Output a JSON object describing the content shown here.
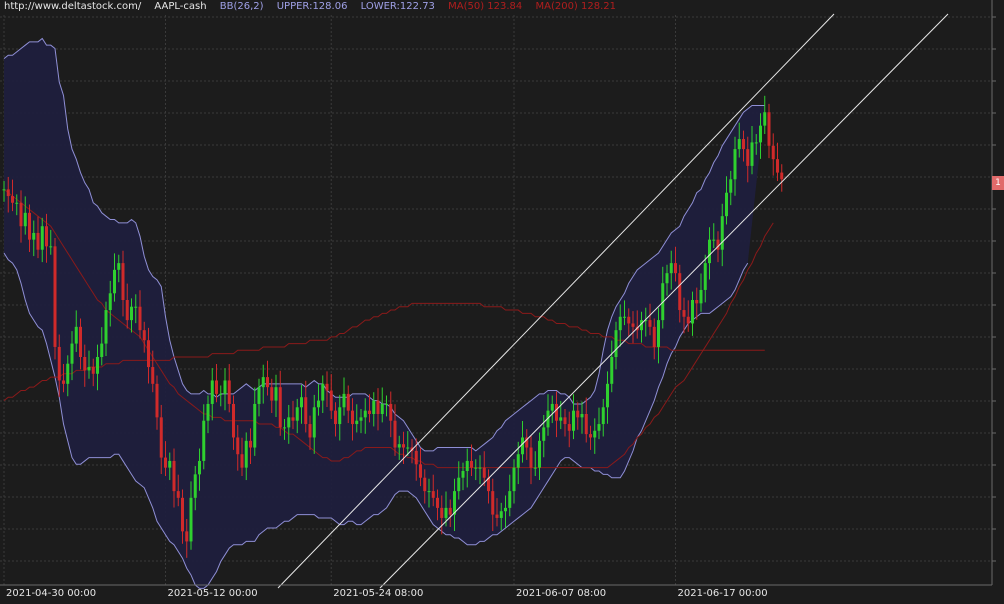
{
  "header": {
    "url": "http://www.deltastock.com/",
    "symbol": "AAPL-cash",
    "bb_label": "BB(26,2)",
    "upper_label": "UPPER:128.06",
    "lower_label": "LOWER:122.73",
    "ma50_label": "MA(50)  123.84",
    "ma200_label": "MA(200)  128.21"
  },
  "price_tag": "1",
  "colors": {
    "background": "#1c1c1c",
    "grid": "#3a3a3a",
    "bull": "#2fd02f",
    "bear": "#d02a2a",
    "band_fill": "#1f1f3d",
    "band_line": "#8f8fd6",
    "ma": "#8a1a1a",
    "channel": "#e8e8e8"
  },
  "chart_data": {
    "type": "candlestick",
    "symbol": "AAPL-cash",
    "x_tick_labels": [
      "2021-04-30 00:00",
      "2021-05-12 00:00",
      "2021-05-24 08:00",
      "2021-06-07 08:00",
      "2021-06-17 00:00"
    ],
    "x_tick_index": [
      0,
      38,
      77,
      120,
      158
    ],
    "ylim": [
      120.5,
      137.5
    ],
    "grid": true,
    "indicators": {
      "bollinger": {
        "period": 26,
        "stddev": 2,
        "upper": 128.06,
        "lower": 122.73
      },
      "ma50": 123.84,
      "ma200": 128.21
    },
    "close": [
      132.3,
      132.1,
      131.9,
      131.9,
      131.2,
      131.6,
      130.8,
      131.0,
      130.5,
      131.2,
      130.6,
      130.6,
      127.6,
      126.6,
      126.5,
      127.1,
      127.7,
      128.2,
      127.3,
      126.9,
      127.0,
      126.8,
      127.3,
      127.7,
      128.7,
      129.2,
      129.9,
      130.1,
      129.0,
      128.4,
      128.8,
      128.8,
      128.1,
      127.8,
      127.0,
      126.5,
      125.5,
      124.3,
      124.0,
      124.2,
      123.3,
      123.1,
      122.1,
      121.8,
      123.1,
      123.8,
      124.2,
      125.4,
      125.9,
      126.6,
      126.2,
      126.2,
      126.6,
      125.9,
      124.9,
      124.4,
      124.0,
      124.8,
      124.6,
      125.9,
      126.4,
      126.7,
      126.4,
      126.0,
      126.4,
      125.2,
      125.2,
      125.5,
      125.4,
      125.8,
      126.1,
      125.3,
      124.9,
      125.8,
      126.0,
      126.5,
      126.3,
      125.7,
      125.3,
      125.8,
      126.2,
      125.7,
      125.3,
      125.4,
      125.5,
      125.7,
      125.6,
      126.0,
      125.6,
      125.9,
      125.9,
      125.4,
      124.6,
      124.7,
      124.6,
      124.6,
      124.5,
      124.1,
      123.7,
      123.3,
      123.3,
      123.1,
      122.8,
      122.5,
      122.8,
      122.6,
      123.3,
      123.7,
      123.9,
      124.2,
      124.0,
      124.0,
      124.0,
      123.7,
      123.3,
      122.6,
      122.5,
      122.7,
      122.8,
      123.3,
      124.0,
      124.4,
      124.9,
      124.6,
      124.0,
      124.0,
      124.8,
      125.2,
      125.7,
      125.9,
      125.4,
      125.5,
      125.3,
      125.1,
      125.7,
      125.5,
      125.6,
      125.0,
      124.9,
      125.1,
      125.3,
      125.8,
      126.5,
      127.3,
      128.1,
      128.5,
      128.5,
      128.3,
      128.2,
      128.1,
      128.4,
      128.4,
      128.2,
      127.6,
      128.4,
      129.5,
      129.8,
      130.1,
      129.8,
      128.7,
      128.5,
      128.3,
      129.0,
      128.9,
      129.3,
      130.1,
      130.8,
      130.8,
      130.5,
      131.5,
      132.2,
      132.6,
      133.5,
      133.8,
      133.5,
      133.0,
      133.7,
      133.7,
      134.2,
      134.6,
      133.6,
      133.2,
      132.8,
      132.6
    ],
    "upper_band": [
      136.2,
      136.3,
      136.3,
      136.4,
      136.5,
      136.6,
      136.7,
      136.7,
      136.7,
      136.8,
      136.6,
      136.6,
      136.5,
      135.5,
      135.1,
      134.1,
      133.5,
      133.2,
      132.8,
      132.5,
      132.3,
      131.9,
      131.8,
      131.6,
      131.5,
      131.4,
      131.4,
      131.3,
      131.3,
      131.3,
      131.4,
      131.3,
      130.9,
      130.3,
      129.9,
      129.7,
      129.6,
      129.4,
      128.5,
      127.8,
      127.3,
      126.9,
      126.5,
      126.3,
      126.2,
      126.2,
      126.2,
      126.3,
      126.2,
      126.2,
      126.1,
      126.2,
      126.2,
      126.2,
      126.2,
      126.3,
      126.4,
      126.5,
      126.4,
      126.3,
      126.4,
      126.5,
      126.5,
      126.5,
      126.5,
      126.5,
      126.5,
      126.5,
      126.5,
      126.5,
      126.5,
      126.4,
      126.5,
      126.6,
      126.5,
      126.5,
      126.3,
      126.2,
      126.1,
      126.1,
      126.1,
      126.1,
      126.2,
      126.2,
      126.2,
      126.2,
      126.1,
      126.0,
      126.0,
      125.9,
      125.9,
      125.8,
      125.6,
      125.5,
      125.4,
      125.2,
      125.0,
      124.8,
      124.6,
      124.5,
      124.5,
      124.5,
      124.6,
      124.6,
      124.6,
      124.6,
      124.6,
      124.6,
      124.6,
      124.6,
      124.6,
      124.5,
      124.6,
      124.7,
      124.8,
      124.9,
      125.1,
      125.2,
      125.4,
      125.5,
      125.6,
      125.7,
      125.8,
      125.9,
      126.0,
      126.1,
      126.2,
      126.2,
      126.3,
      126.3,
      126.3,
      126.2,
      126.2,
      126.1,
      125.9,
      125.9,
      125.9,
      126.0,
      126.1,
      126.3,
      126.8,
      127.5,
      128.1,
      128.5,
      128.8,
      129.0,
      129.2,
      129.5,
      129.7,
      129.9,
      130.0,
      130.1,
      130.2,
      130.3,
      130.4,
      130.6,
      130.8,
      131.0,
      131.1,
      131.2,
      131.5,
      131.7,
      131.9,
      132.2,
      132.3,
      132.6,
      132.8,
      133.1,
      133.3,
      133.6,
      133.8,
      134.0,
      134.2,
      134.4,
      134.6,
      134.7,
      134.8,
      134.8,
      134.8,
      134.8
    ],
    "lower_band": [
      130.4,
      130.2,
      130.1,
      129.9,
      129.5,
      129.0,
      128.6,
      128.4,
      128.2,
      128.1,
      127.7,
      127.2,
      126.7,
      126.1,
      125.3,
      124.8,
      124.3,
      124.1,
      124.1,
      124.2,
      124.3,
      124.3,
      124.3,
      124.3,
      124.3,
      124.3,
      124.4,
      124.4,
      124.2,
      124.0,
      123.8,
      123.6,
      123.5,
      123.4,
      123.1,
      122.8,
      122.4,
      122.2,
      122.0,
      121.8,
      121.7,
      121.5,
      121.3,
      121.0,
      120.8,
      120.5,
      120.4,
      120.4,
      120.5,
      120.7,
      120.9,
      121.2,
      121.4,
      121.6,
      121.7,
      121.7,
      121.7,
      121.8,
      121.8,
      121.8,
      122.0,
      122.1,
      122.2,
      122.2,
      122.2,
      122.3,
      122.4,
      122.4,
      122.5,
      122.6,
      122.6,
      122.6,
      122.6,
      122.6,
      122.5,
      122.5,
      122.5,
      122.5,
      122.4,
      122.3,
      122.3,
      122.4,
      122.4,
      122.3,
      122.3,
      122.4,
      122.5,
      122.6,
      122.6,
      122.7,
      122.8,
      123.0,
      123.2,
      123.3,
      123.3,
      123.3,
      123.2,
      123.1,
      122.9,
      122.7,
      122.5,
      122.3,
      122.2,
      122.1,
      122.0,
      122.0,
      121.9,
      121.9,
      121.8,
      121.7,
      121.7,
      121.7,
      121.8,
      121.8,
      121.9,
      122.0,
      122.0,
      122.1,
      122.2,
      122.3,
      122.4,
      122.5,
      122.6,
      122.7,
      122.8,
      123.0,
      123.2,
      123.4,
      123.6,
      123.8,
      124.0,
      124.2,
      124.3,
      124.3,
      124.2,
      124.1,
      124.0,
      124.0,
      124.0,
      123.9,
      123.9,
      123.8,
      123.8,
      123.7,
      123.7,
      123.7,
      123.9,
      124.2,
      124.5,
      124.9,
      125.1,
      125.4,
      125.7,
      126.0,
      126.4,
      126.7,
      127.1,
      127.4,
      127.6,
      127.9,
      128.1,
      128.3,
      128.4,
      128.5,
      128.6,
      128.6,
      128.6,
      128.7,
      128.8,
      128.9,
      129.0,
      129.1,
      129.3,
      129.6,
      129.9,
      130.1
    ],
    "ma50": [
      132.3,
      132.2,
      132.1,
      132.0,
      131.9,
      131.8,
      131.7,
      131.6,
      131.5,
      131.4,
      131.3,
      131.2,
      131.0,
      130.8,
      130.6,
      130.4,
      130.2,
      130.0,
      129.8,
      129.6,
      129.4,
      129.2,
      129.0,
      128.9,
      128.7,
      128.6,
      128.5,
      128.4,
      128.3,
      128.2,
      128.1,
      128.0,
      127.9,
      127.7,
      127.5,
      127.3,
      127.1,
      126.9,
      126.7,
      126.5,
      126.4,
      126.2,
      126.1,
      126.0,
      125.9,
      125.8,
      125.7,
      125.6,
      125.6,
      125.5,
      125.5,
      125.5,
      125.4,
      125.4,
      125.4,
      125.4,
      125.4,
      125.4,
      125.4,
      125.4,
      125.3,
      125.3,
      125.3,
      125.3,
      125.2,
      125.2,
      125.1,
      125.0,
      125.0,
      124.9,
      124.8,
      124.7,
      124.6,
      124.5,
      124.4,
      124.3,
      124.3,
      124.2,
      124.2,
      124.2,
      124.3,
      124.3,
      124.4,
      124.5,
      124.5,
      124.6,
      124.6,
      124.6,
      124.6,
      124.6,
      124.6,
      124.6,
      124.5,
      124.4,
      124.4,
      124.3,
      124.3,
      124.2,
      124.2,
      124.1,
      124.1,
      124.1,
      124.0,
      124.0,
      124.0,
      124.0,
      124.0,
      124.0,
      124.0,
      124.0,
      124.0,
      124.0,
      124.0,
      124.0,
      124.0,
      124.0,
      124.0,
      124.0,
      124.0,
      124.0,
      124.0,
      124.0,
      124.0,
      124.0,
      124.0,
      124.0,
      124.0,
      124.0,
      124.0,
      124.0,
      124.0,
      124.0,
      124.0,
      124.0,
      124.0,
      124.0,
      124.0,
      124.0,
      124.0,
      124.0,
      124.0,
      124.0,
      124.0,
      124.1,
      124.2,
      124.3,
      124.4,
      124.6,
      124.7,
      124.9,
      125.0,
      125.2,
      125.3,
      125.5,
      125.6,
      125.8,
      126.0,
      126.2,
      126.4,
      126.5,
      126.6,
      126.8,
      127.0,
      127.2,
      127.4,
      127.6,
      127.8,
      128.0,
      128.2,
      128.4,
      128.6,
      128.9,
      129.1,
      129.4,
      129.6,
      129.9,
      130.1,
      130.4,
      130.6,
      130.9,
      131.1,
      131.3
    ],
    "ma200": [
      126.0,
      126.1,
      126.1,
      126.2,
      126.3,
      126.3,
      126.4,
      126.4,
      126.5,
      126.6,
      126.6,
      126.7,
      126.7,
      126.7,
      126.8,
      126.8,
      126.8,
      126.9,
      126.9,
      126.9,
      127.0,
      127.0,
      127.0,
      127.0,
      127.1,
      127.1,
      127.1,
      127.1,
      127.2,
      127.2,
      127.2,
      127.2,
      127.2,
      127.2,
      127.2,
      127.2,
      127.2,
      127.2,
      127.2,
      127.2,
      127.3,
      127.3,
      127.3,
      127.3,
      127.3,
      127.3,
      127.3,
      127.3,
      127.3,
      127.4,
      127.4,
      127.4,
      127.4,
      127.4,
      127.4,
      127.5,
      127.5,
      127.5,
      127.5,
      127.5,
      127.5,
      127.6,
      127.6,
      127.6,
      127.6,
      127.6,
      127.6,
      127.7,
      127.7,
      127.7,
      127.7,
      127.7,
      127.8,
      127.8,
      127.8,
      127.8,
      127.8,
      127.9,
      127.9,
      128.0,
      128.0,
      128.1,
      128.2,
      128.2,
      128.3,
      128.4,
      128.4,
      128.5,
      128.5,
      128.6,
      128.6,
      128.7,
      128.7,
      128.8,
      128.8,
      128.8,
      128.9,
      128.9,
      128.9,
      128.9,
      128.9,
      128.9,
      128.9,
      128.9,
      128.9,
      128.9,
      128.9,
      128.9,
      128.9,
      128.9,
      128.9,
      128.9,
      128.9,
      128.8,
      128.8,
      128.8,
      128.8,
      128.8,
      128.7,
      128.7,
      128.7,
      128.7,
      128.6,
      128.6,
      128.6,
      128.5,
      128.5,
      128.5,
      128.4,
      128.4,
      128.3,
      128.3,
      128.3,
      128.2,
      128.2,
      128.2,
      128.1,
      128.1,
      128.0,
      128.0,
      128.0,
      127.9,
      127.9,
      127.9,
      127.8,
      127.8,
      127.8,
      127.7,
      127.7,
      127.7,
      127.7,
      127.6,
      127.6,
      127.6,
      127.6,
      127.6,
      127.6,
      127.5,
      127.5,
      127.5,
      127.5,
      127.5,
      127.5,
      127.5,
      127.5,
      127.5,
      127.5,
      127.5,
      127.5,
      127.5,
      127.5,
      127.5,
      127.5,
      127.5,
      127.5,
      127.5,
      127.5,
      127.5,
      127.5,
      127.5
    ]
  }
}
